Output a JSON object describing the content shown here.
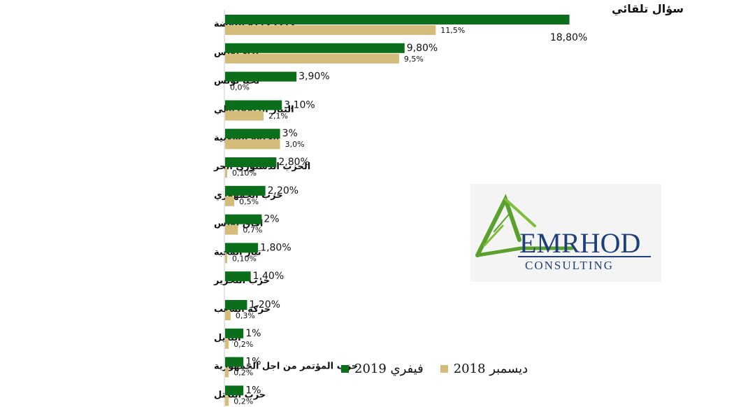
{
  "title": "سؤال تلقائي",
  "legend": {
    "series_2019": "فيفري 2019",
    "series_2018": "ديسمبر 2018"
  },
  "logo": {
    "name": "EMRHOD",
    "sub": "CONSULTING"
  },
  "colors": {
    "series_2019": "#0b6e1a",
    "series_2018": "#d4bd7a",
    "logo_text": "#1f3f7a",
    "logo_mark": "#5aa02c"
  },
  "chart_data": {
    "type": "bar",
    "orientation": "horizontal",
    "categories": [
      "حزب حركة النهضة",
      "نداء تونس",
      "تحيا تونس",
      "التيار الديمقراطي",
      "الجبهة الشعبية",
      "الحزب الدستوري الحر",
      "حزب الجمهوري",
      "افاق تونس",
      "تيار المحبة",
      "حزب التحرير",
      "حركة الشعب",
      "البديل",
      "حزب المؤتمر من اجل الجمهورية",
      "حزب التكتل"
    ],
    "series": [
      {
        "name": "فيفري 2019",
        "values": [
          18.8,
          9.8,
          3.9,
          3.1,
          3,
          2.8,
          2.2,
          2,
          1.8,
          1.4,
          1.2,
          1,
          1,
          1
        ],
        "labels": [
          "18,80%",
          "9,80%",
          "3,90%",
          "3,10%",
          "3%",
          "2,80%",
          "2,20%",
          "2%",
          "1,80%",
          "1,40%",
          "1,20%",
          "1%",
          "1%",
          "1%"
        ]
      },
      {
        "name": "ديسمبر 2018",
        "values": [
          11.5,
          9.5,
          0.0,
          2.1,
          3.0,
          0.1,
          0.5,
          0.7,
          0.1,
          null,
          0.3,
          0.2,
          0.2,
          0.2
        ],
        "labels": [
          "11,5%",
          "9,5%",
          "0,0%",
          "2,1%",
          "3,0%",
          "0,10%",
          "0,5%",
          "0,7%",
          "0,10%",
          "",
          "0,3%",
          "0,2%",
          "0,2%",
          "0,2%"
        ]
      }
    ],
    "xlim": [
      0,
      20
    ],
    "grid": false,
    "legend_position": "bottom-right"
  }
}
